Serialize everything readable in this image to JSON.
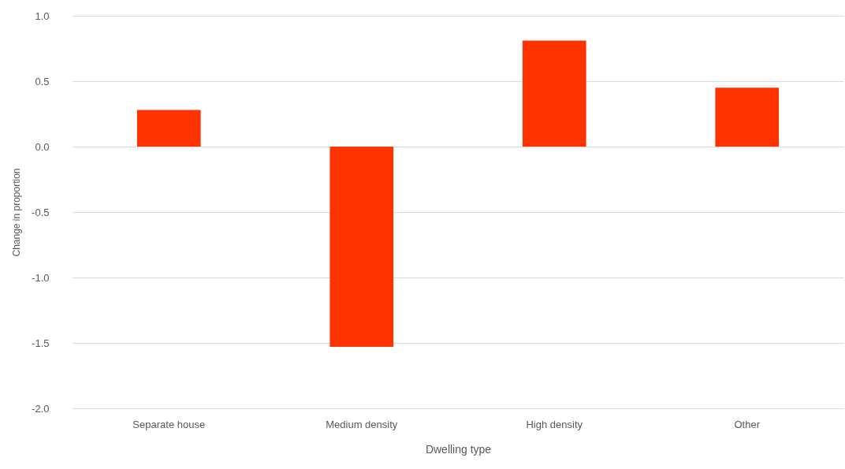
{
  "chart_data": {
    "type": "bar",
    "xlabel": "Dwelling type",
    "ylabel": "Change in proportion",
    "categories": [
      "Separate house",
      "Medium density",
      "High density",
      "Other"
    ],
    "values": [
      0.28,
      -1.53,
      0.81,
      0.45
    ],
    "color": "#ff3300",
    "ylim": [
      -2.0,
      1.0
    ],
    "yticks": [
      {
        "value": -2,
        "label": "-2.0"
      },
      {
        "value": -1.5,
        "label": "-1.5"
      },
      {
        "value": -1,
        "label": "-1.0"
      },
      {
        "value": -0.5,
        "label": "-0.5"
      },
      {
        "value": 0,
        "label": "0.0"
      },
      {
        "value": 0.5,
        "label": "0.5"
      },
      {
        "value": 1,
        "label": "1.0"
      }
    ],
    "grid": "y"
  }
}
